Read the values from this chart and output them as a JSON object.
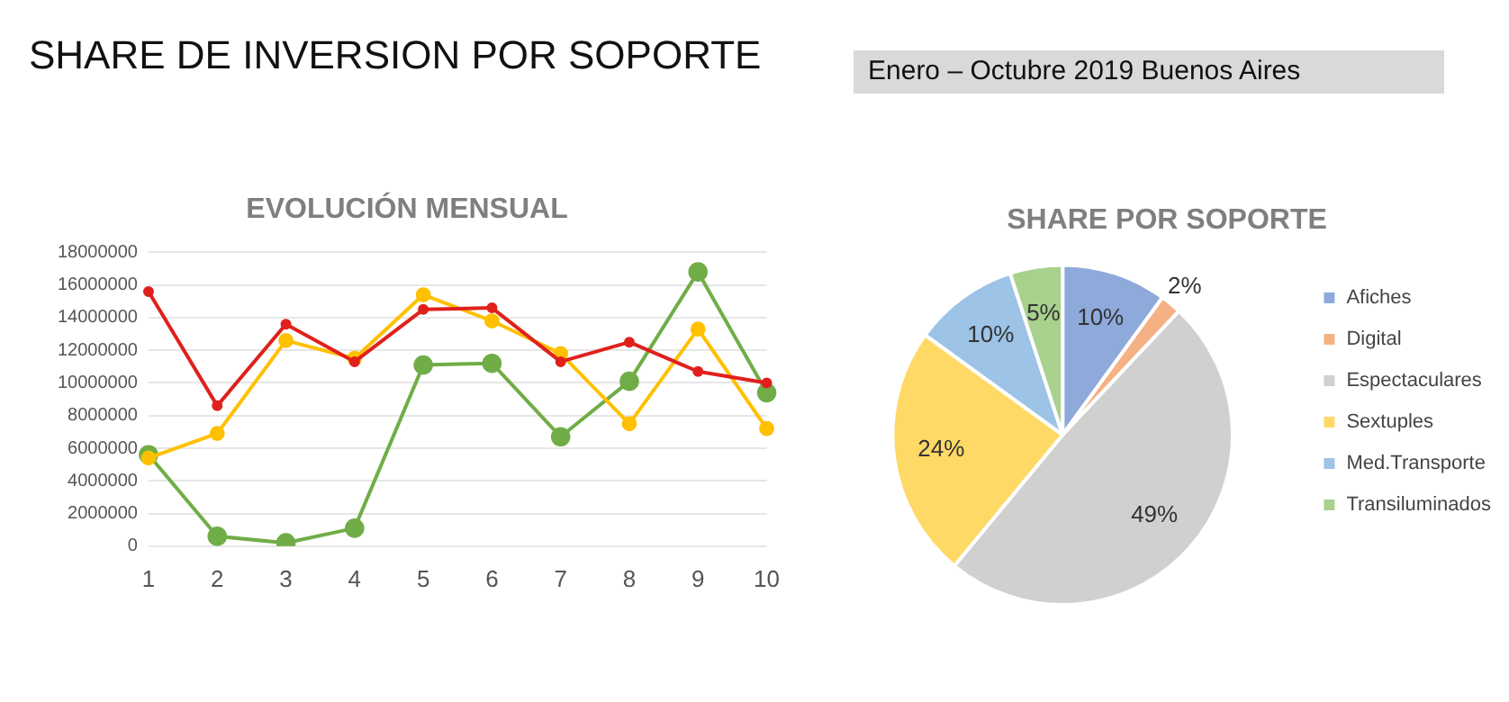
{
  "chart_data": [
    {
      "type": "other",
      "title": "SHARE DE INVERSION POR SOPORTE",
      "subtitle": "Enero – Octubre 2019 Buenos Aires"
    },
    {
      "type": "line",
      "title": "EVOLUCIÓN MENSUAL",
      "categories": [
        "1",
        "2",
        "3",
        "4",
        "5",
        "6",
        "7",
        "8",
        "9",
        "10"
      ],
      "series": [
        {
          "color": "#e0201c",
          "values": [
            15600000,
            8600000,
            13600000,
            11300000,
            14500000,
            14600000,
            11300000,
            12500000,
            10700000,
            10000000
          ]
        },
        {
          "color": "#ffc000",
          "values": [
            5400000,
            6900000,
            12600000,
            11500000,
            15400000,
            13800000,
            11800000,
            7500000,
            13300000,
            7200000
          ]
        },
        {
          "color": "#70ad47",
          "values": [
            5600000,
            600000,
            200000,
            1100000,
            11100000,
            11200000,
            6700000,
            10100000,
            16800000,
            9400000
          ]
        }
      ],
      "ylim": [
        0,
        18000000
      ],
      "yticks": [
        0,
        2000000,
        4000000,
        6000000,
        8000000,
        10000000,
        12000000,
        14000000,
        16000000,
        18000000
      ],
      "grid": "y",
      "legend": false,
      "marker": "circle",
      "line_style": "solid"
    },
    {
      "type": "pie",
      "title": "SHARE POR SOPORTE",
      "categories": [
        "Afiches",
        "Digital",
        "Espectaculares",
        "Sextuples",
        "Med.Transporte",
        "Transiluminados"
      ],
      "values": [
        10,
        2,
        49,
        24,
        10,
        5
      ],
      "value_labels": [
        "10%",
        "2%",
        "49%",
        "24%",
        "10%",
        "5%"
      ],
      "colors": [
        "#8eaadb",
        "#f4b183",
        "#d0d0d0",
        "#ffd966",
        "#9dc3e6",
        "#a9d18e"
      ],
      "legend": "right"
    }
  ]
}
